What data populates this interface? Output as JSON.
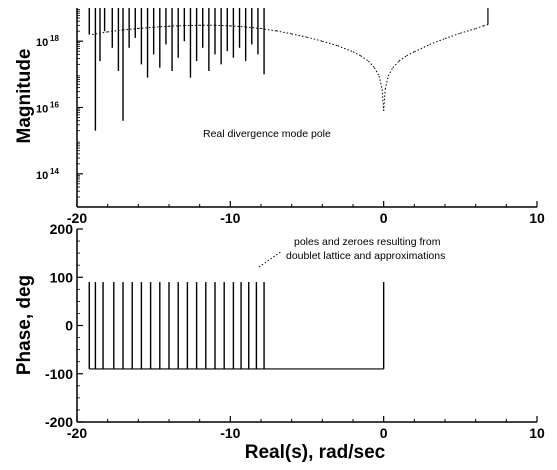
{
  "chart_data": [
    {
      "type": "line",
      "title": "",
      "xlabel": "",
      "ylabel": "Magnitude",
      "xlim": [
        -20,
        10
      ],
      "ylim_log10": [
        13,
        19
      ],
      "xticks": [
        "-20",
        "-10",
        "0",
        "10"
      ],
      "yticks": [
        {
          "base": "10",
          "exp": "14",
          "log": 14
        },
        {
          "base": "10",
          "exp": "16",
          "log": 16
        },
        {
          "base": "10",
          "exp": "18",
          "log": 18
        }
      ],
      "scale": "log-y",
      "annotations": [
        "Real divergence mode pole"
      ],
      "dotted_curve": {
        "x": [
          -19.0,
          -18.0,
          -17.0,
          -16.0,
          -15.0,
          -14.0,
          -13.0,
          -12.0,
          -11.0,
          -10.0,
          -9.0,
          -8.0,
          -7.0,
          -6.0,
          -5.0,
          -4.0,
          -3.0,
          -2.0,
          -1.5,
          -1.0,
          -0.6,
          -0.3,
          -0.1,
          0.0,
          0.1,
          0.3,
          0.6,
          1.0,
          1.5,
          2.0,
          3.0,
          4.0,
          5.0,
          6.0,
          6.5,
          6.8
        ],
        "log10_y": [
          18.2,
          18.28,
          18.34,
          18.38,
          18.42,
          18.45,
          18.47,
          18.48,
          18.48,
          18.46,
          18.43,
          18.38,
          18.31,
          18.22,
          18.12,
          18.0,
          17.86,
          17.68,
          17.56,
          17.4,
          17.2,
          16.95,
          16.55,
          15.9,
          16.55,
          16.95,
          17.2,
          17.4,
          17.56,
          17.68,
          17.9,
          18.08,
          18.24,
          18.38,
          18.46,
          18.5
        ]
      },
      "spikes": {
        "x": [
          -19.2,
          -18.8,
          -18.5,
          -18.2,
          -17.7,
          -17.3,
          -17.0,
          -16.6,
          -16.2,
          -15.8,
          -15.4,
          -15.0,
          -14.6,
          -14.2,
          -13.8,
          -13.4,
          -13.0,
          -12.6,
          -12.2,
          -11.8,
          -11.4,
          -11.0,
          -10.6,
          -10.2,
          -9.8,
          -9.4,
          -9.0,
          -8.6,
          -8.2,
          -7.8
        ],
        "log10_low": [
          18.2,
          15.3,
          17.4,
          18.3,
          17.8,
          17.1,
          15.6,
          17.8,
          18.1,
          17.3,
          16.9,
          17.6,
          17.2,
          17.9,
          17.1,
          17.5,
          18.0,
          16.9,
          17.4,
          17.8,
          17.1,
          17.6,
          17.3,
          17.7,
          17.5,
          17.8,
          17.4,
          17.9,
          17.6,
          17.0
        ]
      }
    },
    {
      "type": "line",
      "title": "",
      "xlabel": "Real(s), rad/sec",
      "ylabel": "Phase, deg",
      "xlim": [
        -20,
        10
      ],
      "ylim": [
        -200,
        200
      ],
      "xticks": [
        "-20",
        "-10",
        "0",
        "10"
      ],
      "yticks": [
        "-200",
        "-100",
        "0",
        "100",
        "200"
      ],
      "annotations": [
        "poles and zeroes resulting from",
        "doublet lattice and approximations"
      ],
      "baseline_phase": -90,
      "baseline_range": [
        -19.2,
        0.0
      ],
      "phase_jumps": {
        "x": [
          -19.2,
          -18.8,
          -18.3,
          -17.6,
          -17.0,
          -16.4,
          -15.8,
          -15.2,
          -14.6,
          -14.0,
          -13.4,
          -12.8,
          -12.2,
          -11.6,
          -11.0,
          -10.4,
          -9.8,
          -9.3,
          -8.8,
          -8.3,
          -7.8,
          0.0
        ],
        "top": 90,
        "bottom": -90
      }
    }
  ]
}
